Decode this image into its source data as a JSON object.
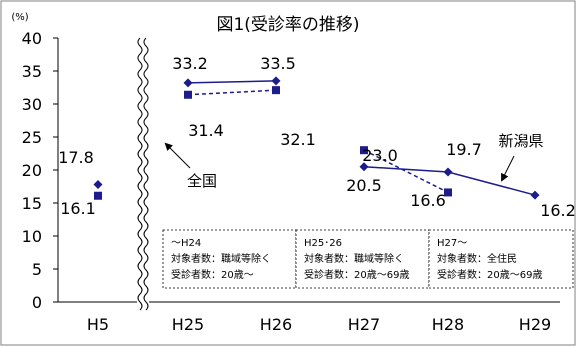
{
  "chart_data": {
    "type": "line",
    "title": "図1(受診率の推移)",
    "y_unit": "(%)",
    "ylim": [
      0,
      40
    ],
    "yticks": [
      "0",
      "5",
      "10",
      "15",
      "20",
      "25",
      "30",
      "35",
      "40"
    ],
    "categories": [
      "H5",
      "H25",
      "H26",
      "H27",
      "H28",
      "H29"
    ],
    "grid": false,
    "axis_break_after": "H5",
    "series": [
      {
        "name": "全国",
        "style": "dashed",
        "marker": "square",
        "color": "#1c1c8c",
        "segments": [
          {
            "categories": [
              "H5"
            ],
            "values": [
              16.1
            ],
            "labels": [
              "16.1"
            ]
          },
          {
            "categories": [
              "H25",
              "H26"
            ],
            "values": [
              31.4,
              32.1
            ],
            "labels": [
              "31.4",
              "32.1"
            ]
          },
          {
            "categories": [
              "H27",
              "H28"
            ],
            "values": [
              23.0,
              16.6
            ],
            "labels": [
              "23.0",
              "16.6"
            ]
          }
        ]
      },
      {
        "name": "新潟県",
        "style": "solid",
        "marker": "diamond",
        "color": "#1c1c8c",
        "segments": [
          {
            "categories": [
              "H5"
            ],
            "values": [
              17.8
            ],
            "labels": [
              "17.8"
            ]
          },
          {
            "categories": [
              "H25",
              "H26"
            ],
            "values": [
              33.2,
              33.5
            ],
            "labels": [
              "33.2",
              "33.5"
            ]
          },
          {
            "categories": [
              "H27",
              "H28",
              "H29"
            ],
            "values": [
              20.5,
              19.7,
              16.2
            ],
            "labels": [
              "20.5",
              "19.7",
              "16.2"
            ]
          }
        ]
      }
    ],
    "notes": [
      {
        "lines": [
          "～H24",
          "対象者数：職域等除く",
          "受診者数：20歳～"
        ]
      },
      {
        "lines": [
          "H25･26",
          "対象者数：職域等除く",
          "受診者数：20歳～69歳"
        ]
      },
      {
        "lines": [
          "H27～",
          "対象者数：全住民",
          "受診者数：20歳～69歳"
        ]
      }
    ]
  }
}
